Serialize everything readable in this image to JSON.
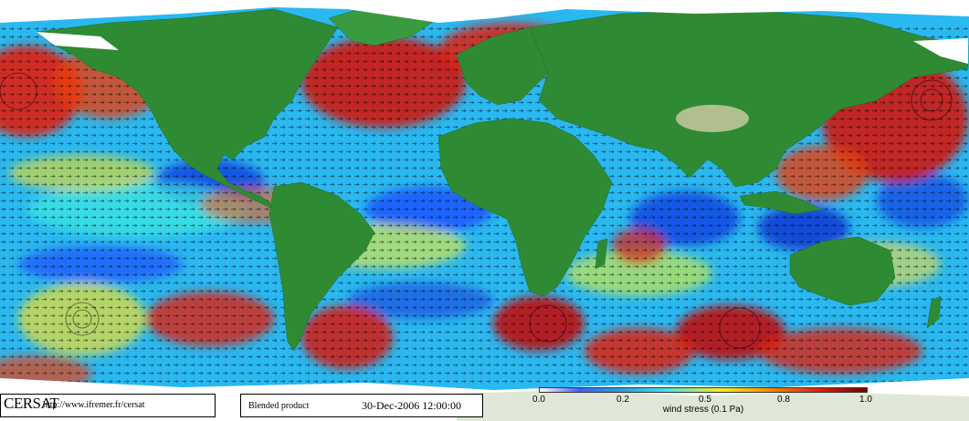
{
  "logo": {
    "text": "CERSAT"
  },
  "url": "http://www.ifremer.fr/cersat",
  "product": "Blended product",
  "date": "30-Dec-2006 12:00:00",
  "colorbar": {
    "ticks": [
      "0.0",
      "0.2",
      "0.5",
      "0.8",
      "1.0"
    ],
    "label": "wind stress (0.1 Pa)",
    "colors": [
      "#ffffff",
      "#4060ff",
      "#2a9fe0",
      "#40e0f0",
      "#f0f020",
      "#ff8c00",
      "#e02010",
      "#7a0000"
    ]
  },
  "map": {
    "ocean_base_color": "#2ab8f0",
    "land_color": "#2f8a34",
    "ice_color": "#ffffff"
  }
}
